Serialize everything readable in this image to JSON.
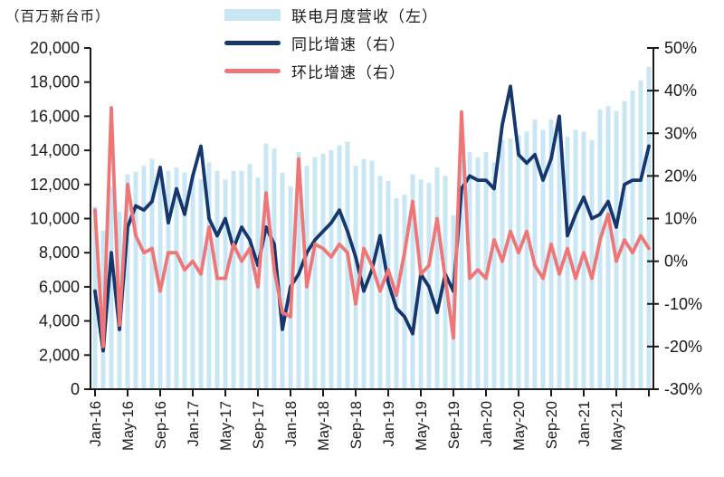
{
  "axis_left_title": "（百万新台币）",
  "legend": [
    {
      "label": "联电月度营收（左）",
      "type": "bar",
      "color": "#c9e6f5"
    },
    {
      "label": "同比增速（右）",
      "type": "line",
      "color": "#16376e"
    },
    {
      "label": "环比增速（右）",
      "type": "line",
      "color": "#ee7677"
    }
  ],
  "colors": {
    "bar": "#c9e6f5",
    "yoy": "#16376e",
    "mom": "#ee7677",
    "axis": "#1a1a1a"
  },
  "chart_data": {
    "type": "bar+line combo",
    "title": "",
    "xlabel": "",
    "ylabel_left": "（百万新台币）",
    "left_axis": {
      "min": 0,
      "max": 20000,
      "step": 2000,
      "tick_labels": [
        "0",
        "2,000",
        "4,000",
        "6,000",
        "8,000",
        "10,000",
        "12,000",
        "14,000",
        "16,000",
        "18,000",
        "20,000"
      ]
    },
    "right_axis": {
      "min": -30,
      "max": 50,
      "step": 10,
      "tick_labels": [
        "-30%",
        "-20%",
        "-10%",
        "0%",
        "10%",
        "20%",
        "30%",
        "40%",
        "50%"
      ]
    },
    "grid": false,
    "legend_position": "top",
    "x": [
      "Jan-16",
      "Feb-16",
      "Mar-16",
      "Apr-16",
      "May-16",
      "Jun-16",
      "Jul-16",
      "Aug-16",
      "Sep-16",
      "Oct-16",
      "Nov-16",
      "Dec-16",
      "Jan-17",
      "Feb-17",
      "Mar-17",
      "Apr-17",
      "May-17",
      "Jun-17",
      "Jul-17",
      "Aug-17",
      "Sep-17",
      "Oct-17",
      "Nov-17",
      "Dec-17",
      "Jan-18",
      "Feb-18",
      "Mar-18",
      "Apr-18",
      "May-18",
      "Jun-18",
      "Jul-18",
      "Aug-18",
      "Sep-18",
      "Oct-18",
      "Nov-18",
      "Dec-18",
      "Jan-19",
      "Feb-19",
      "Mar-19",
      "Apr-19",
      "May-19",
      "Jun-19",
      "Jul-19",
      "Aug-19",
      "Sep-19",
      "Oct-19",
      "Nov-19",
      "Dec-19",
      "Jan-20",
      "Feb-20",
      "Mar-20",
      "Apr-20",
      "May-20",
      "Jun-20",
      "Jul-20",
      "Aug-20",
      "Sep-20",
      "Oct-20",
      "Nov-20",
      "Dec-20",
      "Jan-21",
      "Feb-21",
      "Mar-21",
      "Apr-21",
      "May-21",
      "Jun-21",
      "Jul-21",
      "Aug-21",
      "Sep-21"
    ],
    "x_tick_every": 4,
    "x_tick_labels": [
      "Jan-16",
      "May-16",
      "Sep-16",
      "Jan-17",
      "May-17",
      "Sep-17",
      "Jan-18",
      "May-18",
      "Sep-18",
      "Jan-19",
      "May-19",
      "Sep-19",
      "Jan-20",
      "May-20",
      "Sep-20",
      "Jan-21",
      "May-21"
    ],
    "series": [
      {
        "name": "联电月度营收（左）",
        "type": "bar",
        "axis": "left",
        "values": [
          10700,
          9300,
          11900,
          10400,
          12600,
          12750,
          13100,
          13500,
          12600,
          12800,
          13000,
          12700,
          12600,
          12300,
          13300,
          12800,
          12300,
          12800,
          12800,
          13200,
          12400,
          14400,
          14100,
          12700,
          11900,
          13900,
          13100,
          13600,
          13800,
          14000,
          14300,
          14500,
          13100,
          13500,
          13400,
          12500,
          12200,
          11200,
          11400,
          12600,
          12300,
          12100,
          13000,
          12500,
          10200,
          13800,
          13900,
          13600,
          13900,
          13300,
          14600,
          14700,
          14900,
          15100,
          15800,
          15200,
          15800,
          15300,
          14800,
          15200,
          15100,
          14600,
          16400,
          16600,
          16300,
          16900,
          17500,
          18100,
          18900
        ]
      },
      {
        "name": "同比增速（右）",
        "type": "line",
        "axis": "right",
        "values": [
          -7,
          -21,
          2,
          -16,
          8,
          13,
          12,
          14,
          22,
          9,
          17,
          11,
          20,
          27,
          10,
          6,
          10,
          3,
          8,
          5,
          -1,
          8,
          4,
          -16,
          -6,
          -3,
          2,
          5,
          7,
          9,
          12,
          7,
          1,
          -7,
          -2,
          6,
          -5,
          -11,
          -13,
          -17,
          -3,
          -6,
          -12,
          -3,
          -7,
          17,
          20,
          19,
          19,
          17,
          32,
          41,
          25,
          23,
          25,
          19,
          24,
          34,
          6,
          11,
          15,
          10,
          11,
          14,
          8,
          18,
          19,
          19,
          27
        ]
      },
      {
        "name": "环比增速（右）",
        "type": "line",
        "axis": "right",
        "values": [
          12,
          -20,
          36,
          -15,
          18,
          6,
          2,
          3,
          -7,
          2,
          2,
          -2,
          0,
          -3,
          8,
          -4,
          -4,
          4,
          0,
          3,
          -6,
          16,
          -2,
          -12,
          -13,
          24,
          -6,
          4,
          3,
          1,
          4,
          2,
          -10,
          3,
          -1,
          -7,
          -2,
          -8,
          2,
          14,
          -3,
          -1,
          10,
          -4,
          -18,
          35,
          -4,
          -2,
          -4,
          5,
          0,
          7,
          2,
          7,
          -1,
          -4,
          4,
          -3,
          3,
          -4,
          2,
          -4,
          5,
          11,
          0,
          5,
          2,
          6,
          3
        ]
      }
    ]
  }
}
